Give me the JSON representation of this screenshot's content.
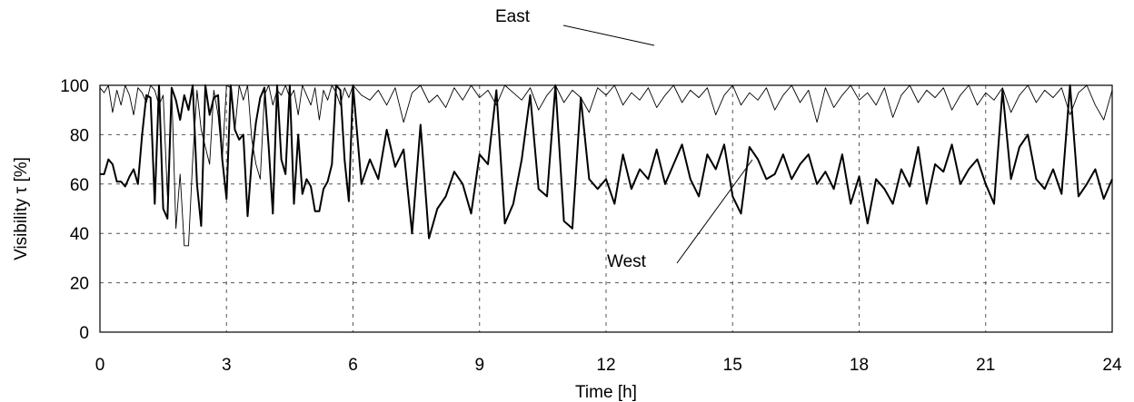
{
  "chart_data": {
    "type": "line",
    "title": "",
    "xlabel": "Time [h]",
    "ylabel": "Visibility τ [%]",
    "xlim": [
      0,
      24
    ],
    "ylim": [
      0,
      100
    ],
    "xticks": [
      0,
      3,
      6,
      9,
      12,
      15,
      18,
      21,
      24
    ],
    "yticks": [
      0,
      20,
      40,
      60,
      80,
      100
    ],
    "grid": true,
    "series": [
      {
        "name": "East",
        "color": "#000000",
        "x": [
          0,
          0.1,
          0.2,
          0.3,
          0.4,
          0.5,
          0.6,
          0.7,
          0.8,
          0.9,
          1,
          1.1,
          1.2,
          1.3,
          1.4,
          1.5,
          1.6,
          1.7,
          1.8,
          1.9,
          2,
          2.1,
          2.2,
          2.3,
          2.4,
          2.5,
          2.6,
          2.7,
          2.8,
          2.9,
          3,
          3.1,
          3.2,
          3.3,
          3.4,
          3.5,
          3.6,
          3.7,
          3.8,
          3.9,
          4,
          4.1,
          4.2,
          4.3,
          4.4,
          4.5,
          4.6,
          4.7,
          4.8,
          4.9,
          5,
          5.1,
          5.2,
          5.3,
          5.4,
          5.5,
          5.6,
          5.7,
          5.8,
          5.9,
          6,
          6.2,
          6.4,
          6.6,
          6.8,
          7,
          7.2,
          7.4,
          7.6,
          7.8,
          8,
          8.2,
          8.4,
          8.6,
          8.8,
          9,
          9.2,
          9.4,
          9.6,
          9.8,
          10,
          10.2,
          10.4,
          10.6,
          10.8,
          11,
          11.2,
          11.4,
          11.6,
          11.8,
          12,
          12.2,
          12.4,
          12.6,
          12.8,
          13,
          13.2,
          13.4,
          13.6,
          13.8,
          14,
          14.2,
          14.4,
          14.6,
          14.8,
          15,
          15.2,
          15.4,
          15.6,
          15.8,
          16,
          16.2,
          16.4,
          16.6,
          16.8,
          17,
          17.2,
          17.4,
          17.6,
          17.8,
          18,
          18.2,
          18.4,
          18.6,
          18.8,
          19,
          19.2,
          19.4,
          19.6,
          19.8,
          20,
          20.2,
          20.4,
          20.6,
          20.8,
          21,
          21.2,
          21.4,
          21.6,
          21.8,
          22,
          22.2,
          22.4,
          22.6,
          22.8,
          23,
          23.2,
          23.4,
          23.6,
          23.8,
          24
        ],
        "values": [
          99,
          97,
          100,
          89,
          98,
          92,
          100,
          96,
          88,
          99,
          97,
          93,
          100,
          98,
          92,
          96,
          55,
          99,
          42,
          64,
          35,
          35,
          70,
          98,
          82,
          75,
          68,
          98,
          88,
          70,
          100,
          99,
          82,
          100,
          94,
          100,
          78,
          68,
          62,
          96,
          100,
          92,
          98,
          96,
          100,
          95,
          98,
          88,
          100,
          96,
          92,
          99,
          86,
          98,
          94,
          100,
          97,
          92,
          99,
          95,
          100,
          96,
          94,
          98,
          92,
          99,
          85,
          97,
          100,
          93,
          96,
          91,
          99,
          94,
          100,
          95,
          98,
          92,
          100,
          97,
          94,
          99,
          90,
          96,
          100,
          93,
          98,
          95,
          89,
          99,
          96,
          100,
          92,
          97,
          94,
          99,
          91,
          96,
          100,
          93,
          98,
          95,
          99,
          88,
          96,
          100,
          92,
          97,
          94,
          99,
          90,
          96,
          100,
          93,
          98,
          85,
          99,
          91,
          96,
          100,
          94,
          97,
          92,
          99,
          87,
          96,
          100,
          93,
          98,
          95,
          99,
          90,
          96,
          100,
          92,
          97,
          94,
          99,
          89,
          96,
          100,
          93,
          98,
          95,
          99,
          88,
          97,
          100,
          92,
          86,
          98
        ]
      },
      {
        "name": "West",
        "color": "#000000",
        "x": [
          0,
          0.1,
          0.2,
          0.3,
          0.4,
          0.5,
          0.6,
          0.7,
          0.8,
          0.9,
          1,
          1.1,
          1.2,
          1.3,
          1.4,
          1.5,
          1.6,
          1.7,
          1.8,
          1.9,
          2,
          2.1,
          2.2,
          2.3,
          2.4,
          2.5,
          2.6,
          2.7,
          2.8,
          2.9,
          3,
          3.1,
          3.2,
          3.3,
          3.4,
          3.5,
          3.6,
          3.7,
          3.8,
          3.9,
          4,
          4.1,
          4.2,
          4.3,
          4.4,
          4.5,
          4.6,
          4.7,
          4.8,
          4.9,
          5,
          5.1,
          5.2,
          5.3,
          5.4,
          5.5,
          5.6,
          5.7,
          5.8,
          5.9,
          6,
          6.2,
          6.4,
          6.6,
          6.8,
          7,
          7.2,
          7.4,
          7.6,
          7.8,
          8,
          8.2,
          8.4,
          8.6,
          8.8,
          9,
          9.2,
          9.4,
          9.6,
          9.8,
          10,
          10.2,
          10.4,
          10.6,
          10.8,
          11,
          11.2,
          11.4,
          11.6,
          11.8,
          12,
          12.2,
          12.4,
          12.6,
          12.8,
          13,
          13.2,
          13.4,
          13.6,
          13.8,
          14,
          14.2,
          14.4,
          14.6,
          14.8,
          15,
          15.2,
          15.4,
          15.6,
          15.8,
          16,
          16.2,
          16.4,
          16.6,
          16.8,
          17,
          17.2,
          17.4,
          17.6,
          17.8,
          18,
          18.2,
          18.4,
          18.6,
          18.8,
          19,
          19.2,
          19.4,
          19.6,
          19.8,
          20,
          20.2,
          20.4,
          20.6,
          20.8,
          21,
          21.2,
          21.4,
          21.6,
          21.8,
          22,
          22.2,
          22.4,
          22.6,
          22.8,
          23,
          23.2,
          23.4,
          23.6,
          23.8,
          24
        ],
        "values": [
          64,
          64,
          70,
          68,
          61,
          61,
          59,
          63,
          66,
          60,
          80,
          96,
          95,
          52,
          100,
          50,
          46,
          99,
          94,
          86,
          96,
          90,
          100,
          60,
          43,
          100,
          88,
          95,
          96,
          70,
          54,
          100,
          82,
          78,
          80,
          47,
          70,
          85,
          95,
          99,
          75,
          48,
          100,
          70,
          64,
          100,
          52,
          80,
          56,
          62,
          59,
          49,
          49,
          58,
          61,
          68,
          100,
          98,
          70,
          53,
          100,
          60,
          70,
          62,
          82,
          67,
          74,
          40,
          84,
          38,
          50,
          55,
          65,
          60,
          48,
          72,
          68,
          98,
          44,
          52,
          70,
          96,
          58,
          55,
          100,
          45,
          42,
          95,
          62,
          58,
          62,
          52,
          72,
          58,
          66,
          62,
          74,
          60,
          68,
          76,
          62,
          55,
          72,
          66,
          76,
          55,
          48,
          75,
          70,
          62,
          64,
          72,
          62,
          68,
          72,
          60,
          65,
          58,
          72,
          52,
          63,
          44,
          62,
          58,
          52,
          66,
          59,
          75,
          52,
          68,
          65,
          76,
          60,
          66,
          70,
          60,
          52,
          98,
          62,
          75,
          80,
          62,
          58,
          66,
          56,
          100,
          55,
          60,
          66,
          54,
          62
        ]
      }
    ],
    "annotations": [
      {
        "text": "East"
      },
      {
        "text": "West"
      }
    ]
  }
}
